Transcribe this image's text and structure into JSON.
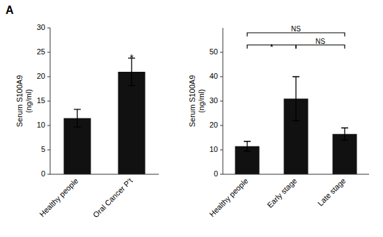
{
  "title": "A",
  "chart_data": [
    {
      "type": "bar",
      "categories": [
        "Healthy people",
        "Oral Cancer P't"
      ],
      "values": [
        11.5,
        21.0
      ],
      "errors": [
        1.8,
        2.8
      ],
      "ylim": [
        0,
        30
      ],
      "yticks": [
        0,
        5,
        10,
        15,
        20,
        25,
        30
      ],
      "y_label": "Serum S100A9\n(ng/ml)",
      "color": "#111111",
      "annotations": [
        {
          "text": "*",
          "category": "Oral Cancer P't",
          "y": 24.3
        }
      ]
    },
    {
      "type": "bar",
      "categories": [
        "Healthy people",
        "Early stage",
        "Late stage"
      ],
      "values": [
        11.5,
        31.0,
        16.5
      ],
      "errors": [
        2.0,
        9.0,
        2.5
      ],
      "ylim": [
        0,
        60
      ],
      "yticks": [
        0,
        10,
        20,
        30,
        40,
        50
      ],
      "y_label": "Serum S100A9\n(ng/ml)",
      "color": "#111111",
      "annotations": [
        {
          "text": "*",
          "from": "Healthy people",
          "to": "Early stage",
          "y": 51.5,
          "height": 1.5
        },
        {
          "text": "NS",
          "from": "Early stage",
          "to": "Late stage",
          "y": 51.5,
          "height": 1.5
        },
        {
          "text": "NS",
          "from": "Healthy people",
          "to": "Late stage",
          "y": 56.5,
          "height": 1.5
        }
      ]
    }
  ]
}
